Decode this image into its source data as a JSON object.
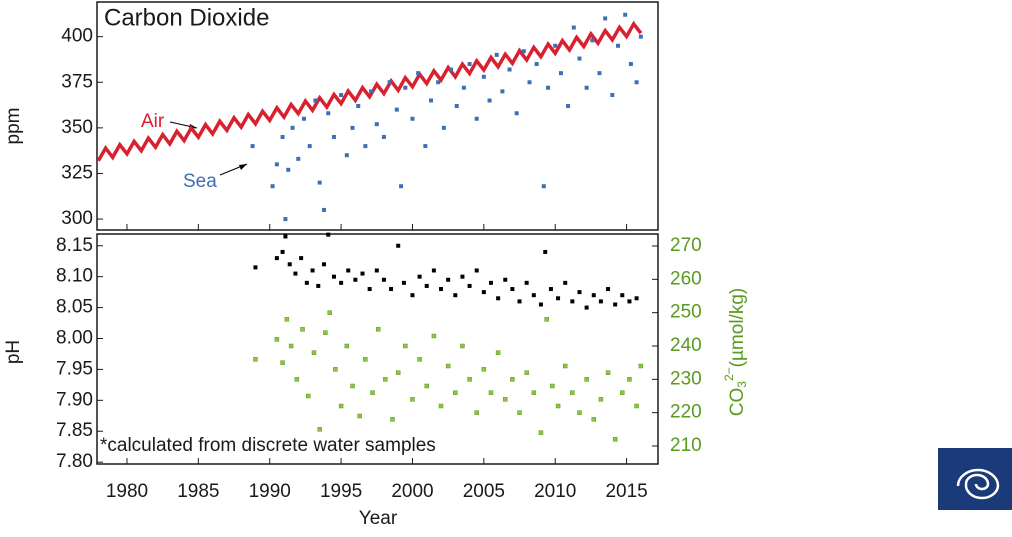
{
  "chart_data": [
    {
      "type": "scatter",
      "title": "Carbon Dioxide",
      "y_label": "ppm",
      "xlim": [
        1977.9,
        2017.2
      ],
      "ylim": [
        294,
        419
      ],
      "yticks": [
        300,
        325,
        350,
        375,
        400
      ],
      "annotations": [
        "Air",
        "Sea"
      ],
      "series": [
        {
          "name": "Air",
          "color": "#d9202e",
          "line": true,
          "x": [
            1978.0,
            1978.5,
            1979.0,
            1979.5,
            1980.0,
            1980.5,
            1981.0,
            1981.5,
            1982.0,
            1982.5,
            1983.0,
            1983.5,
            1984.0,
            1984.5,
            1985.0,
            1985.5,
            1986.0,
            1986.5,
            1987.0,
            1987.5,
            1988.0,
            1988.5,
            1989.0,
            1989.5,
            1990.0,
            1990.5,
            1991.0,
            1991.5,
            1992.0,
            1992.5,
            1993.0,
            1993.5,
            1994.0,
            1994.5,
            1995.0,
            1995.5,
            1996.0,
            1996.5,
            1997.0,
            1997.5,
            1998.0,
            1998.5,
            1999.0,
            1999.5,
            2000.0,
            2000.5,
            2001.0,
            2001.5,
            2002.0,
            2002.5,
            2003.0,
            2003.5,
            2004.0,
            2004.5,
            2005.0,
            2005.5,
            2006.0,
            2006.5,
            2007.0,
            2007.5,
            2008.0,
            2008.5,
            2009.0,
            2009.5,
            2010.0,
            2010.5,
            2011.0,
            2011.5,
            2012.0,
            2012.5,
            2013.0,
            2013.5,
            2014.0,
            2014.5,
            2015.0,
            2015.5,
            2016.0
          ],
          "values": [
            332.0,
            338.9,
            333.8,
            340.7,
            335.7,
            342.6,
            337.5,
            344.4,
            339.4,
            346.3,
            341.2,
            348.1,
            343.0,
            349.9,
            344.9,
            351.8,
            346.7,
            353.6,
            348.6,
            355.5,
            350.4,
            357.3,
            352.2,
            359.1,
            354.1,
            361.0,
            355.9,
            362.8,
            357.8,
            364.7,
            359.6,
            366.5,
            361.4,
            368.3,
            363.3,
            370.2,
            365.1,
            372.0,
            367.0,
            373.9,
            368.8,
            375.7,
            370.6,
            377.5,
            372.5,
            379.4,
            374.3,
            381.2,
            376.2,
            383.1,
            378.0,
            384.9,
            379.8,
            386.7,
            381.7,
            388.6,
            383.5,
            390.4,
            385.4,
            392.3,
            387.2,
            394.1,
            389.0,
            395.9,
            390.9,
            397.8,
            392.7,
            399.6,
            394.6,
            401.5,
            396.4,
            403.3,
            398.2,
            405.1,
            400.1,
            407.0,
            401.9
          ]
        },
        {
          "name": "Sea",
          "color": "#3b6fb6",
          "x": [
            1988.8,
            1990.2,
            1990.5,
            1990.9,
            1991.1,
            1991.3,
            1991.6,
            1992.0,
            1992.4,
            1992.8,
            1993.2,
            1993.5,
            1993.8,
            1994.1,
            1994.5,
            1995.0,
            1995.4,
            1995.8,
            1996.2,
            1996.7,
            1997.1,
            1997.5,
            1998.0,
            1998.4,
            1998.9,
            1999.2,
            1999.5,
            2000.0,
            2000.4,
            2000.9,
            2001.3,
            2001.8,
            2002.2,
            2002.7,
            2003.1,
            2003.6,
            2004.0,
            2004.5,
            2005.0,
            2005.4,
            2005.9,
            2006.3,
            2006.8,
            2007.3,
            2007.8,
            2008.2,
            2008.7,
            2009.2,
            2009.5,
            2010.0,
            2010.4,
            2010.9,
            2011.3,
            2011.7,
            2012.2,
            2012.6,
            2013.1,
            2013.5,
            2014.0,
            2014.4,
            2014.9,
            2015.3,
            2015.7,
            2016.0
          ],
          "values": [
            340,
            318,
            330,
            345,
            300,
            327,
            350,
            333,
            355,
            340,
            365,
            320,
            305,
            358,
            345,
            368,
            335,
            350,
            362,
            340,
            370,
            352,
            345,
            375,
            360,
            318,
            372,
            355,
            380,
            340,
            365,
            375,
            350,
            382,
            362,
            372,
            385,
            355,
            378,
            365,
            390,
            370,
            382,
            358,
            392,
            375,
            385,
            318,
            372,
            395,
            380,
            362,
            405,
            388,
            372,
            398,
            380,
            410,
            368,
            395,
            412,
            385,
            375,
            400
          ]
        }
      ]
    },
    {
      "type": "scatter",
      "y_label": "pH",
      "x_label": "Year",
      "y2_label": {
        "base": "CO",
        "sub": "3",
        "sup": "2−",
        "unit": "(µmol/kg)"
      },
      "annotation": "*calculated from discrete water samples",
      "xlim": [
        1977.9,
        2017.2
      ],
      "xticks": [
        1980,
        1985,
        1990,
        1995,
        2000,
        2005,
        2010,
        2015
      ],
      "ylim": [
        7.797,
        8.169
      ],
      "yticks": [
        {
          "value": 8.15,
          "label": "8.15"
        },
        {
          "value": 8.1,
          "label": "8.10"
        },
        {
          "value": 8.05,
          "label": "8.05"
        },
        {
          "value": 8.0,
          "label": "8.00"
        },
        {
          "value": 7.95,
          "label": "7.95"
        },
        {
          "value": 7.9,
          "label": "7.90"
        },
        {
          "value": 7.85,
          "label": "7.85"
        },
        {
          "value": 7.8,
          "label": "7.80"
        }
      ],
      "y2lim": [
        204.6,
        273.6
      ],
      "y2ticks": [
        210,
        220,
        230,
        240,
        250,
        260,
        270
      ],
      "y2color": "#5a9a1f",
      "series": [
        {
          "name": "pH",
          "color": "#000000",
          "x": [
            1989.0,
            1990.5,
            1990.9,
            1991.1,
            1991.4,
            1991.8,
            1992.2,
            1992.6,
            1993.0,
            1993.4,
            1993.8,
            1994.1,
            1994.5,
            1995.0,
            1995.5,
            1996.0,
            1996.5,
            1997.0,
            1997.5,
            1998.0,
            1998.5,
            1999.0,
            1999.4,
            2000.0,
            2000.5,
            2001.0,
            2001.5,
            2002.0,
            2002.5,
            2003.0,
            2003.5,
            2004.0,
            2004.5,
            2005.0,
            2005.5,
            2006.0,
            2006.5,
            2007.0,
            2007.5,
            2008.0,
            2008.5,
            2009.0,
            2009.3,
            2009.7,
            2010.2,
            2010.7,
            2011.2,
            2011.7,
            2012.2,
            2012.7,
            2013.2,
            2013.7,
            2014.2,
            2014.7,
            2015.2,
            2015.7
          ],
          "values": [
            8.115,
            8.13,
            8.14,
            8.165,
            8.12,
            8.105,
            8.13,
            8.09,
            8.11,
            8.085,
            8.12,
            8.168,
            8.1,
            8.09,
            8.11,
            8.095,
            8.105,
            8.08,
            8.11,
            8.095,
            8.08,
            8.15,
            8.09,
            8.07,
            8.1,
            8.085,
            8.11,
            8.08,
            8.095,
            8.07,
            8.1,
            8.085,
            8.11,
            8.075,
            8.09,
            8.065,
            8.095,
            8.08,
            8.06,
            8.09,
            8.07,
            8.055,
            8.14,
            8.08,
            8.065,
            8.09,
            8.06,
            8.075,
            8.05,
            8.07,
            8.06,
            8.08,
            8.055,
            8.07,
            8.06,
            8.065
          ]
        },
        {
          "name": "CO3",
          "color": "#8cc63f",
          "axis": "y2",
          "x": [
            1989.0,
            1990.5,
            1990.9,
            1991.2,
            1991.5,
            1991.9,
            1992.3,
            1992.7,
            1993.1,
            1993.5,
            1993.9,
            1994.2,
            1994.6,
            1995.0,
            1995.4,
            1995.8,
            1996.3,
            1996.7,
            1997.2,
            1997.6,
            1998.1,
            1998.6,
            1999.0,
            1999.5,
            2000.0,
            2000.5,
            2001.0,
            2001.5,
            2002.0,
            2002.5,
            2003.0,
            2003.5,
            2004.0,
            2004.5,
            2005.0,
            2005.5,
            2006.0,
            2006.5,
            2007.0,
            2007.5,
            2008.0,
            2008.5,
            2009.0,
            2009.4,
            2009.8,
            2010.2,
            2010.7,
            2011.2,
            2011.7,
            2012.2,
            2012.7,
            2013.2,
            2013.7,
            2014.2,
            2014.7,
            2015.2,
            2015.7,
            2016.0
          ],
          "values": [
            236,
            242,
            235,
            248,
            240,
            230,
            245,
            225,
            238,
            215,
            244,
            250,
            233,
            222,
            240,
            228,
            219,
            236,
            226,
            245,
            230,
            218,
            232,
            240,
            224,
            236,
            228,
            243,
            222,
            234,
            226,
            240,
            230,
            220,
            233,
            226,
            238,
            224,
            230,
            220,
            232,
            226,
            214,
            248,
            228,
            222,
            234,
            226,
            220,
            230,
            218,
            224,
            232,
            212,
            226,
            230,
            222,
            234
          ]
        }
      ]
    }
  ]
}
